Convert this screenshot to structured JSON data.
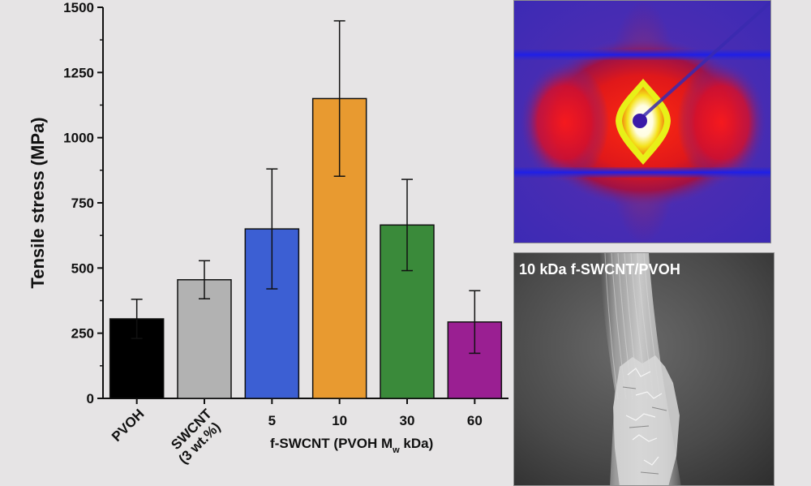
{
  "chart_data": {
    "type": "bar",
    "ylabel": "Tensile stress (MPa)",
    "xlabel_group": "f-SWCNT (PVOH M",
    "xlabel_group_subscript": "w",
    "xlabel_group_suffix": " kDa)",
    "ylim": [
      0,
      1500
    ],
    "yticks": [
      0,
      250,
      500,
      750,
      1000,
      1250,
      1500
    ],
    "categories": [
      "PVOH",
      "SWCNT\n(3 wt.%)",
      "5",
      "10",
      "30",
      "60"
    ],
    "category_rotated": [
      true,
      true,
      false,
      false,
      false,
      false
    ],
    "values": [
      305,
      455,
      650,
      1150,
      665,
      293
    ],
    "errors": [
      75,
      73,
      230,
      298,
      175,
      120
    ],
    "colors": [
      "#000000",
      "#b2b2b2",
      "#3c5fd3",
      "#e89a30",
      "#3a8a3a",
      "#9a1f92"
    ],
    "grid": false
  },
  "figure": {
    "sem_caption": "10 kDa f-SWCNT/PVOH"
  }
}
